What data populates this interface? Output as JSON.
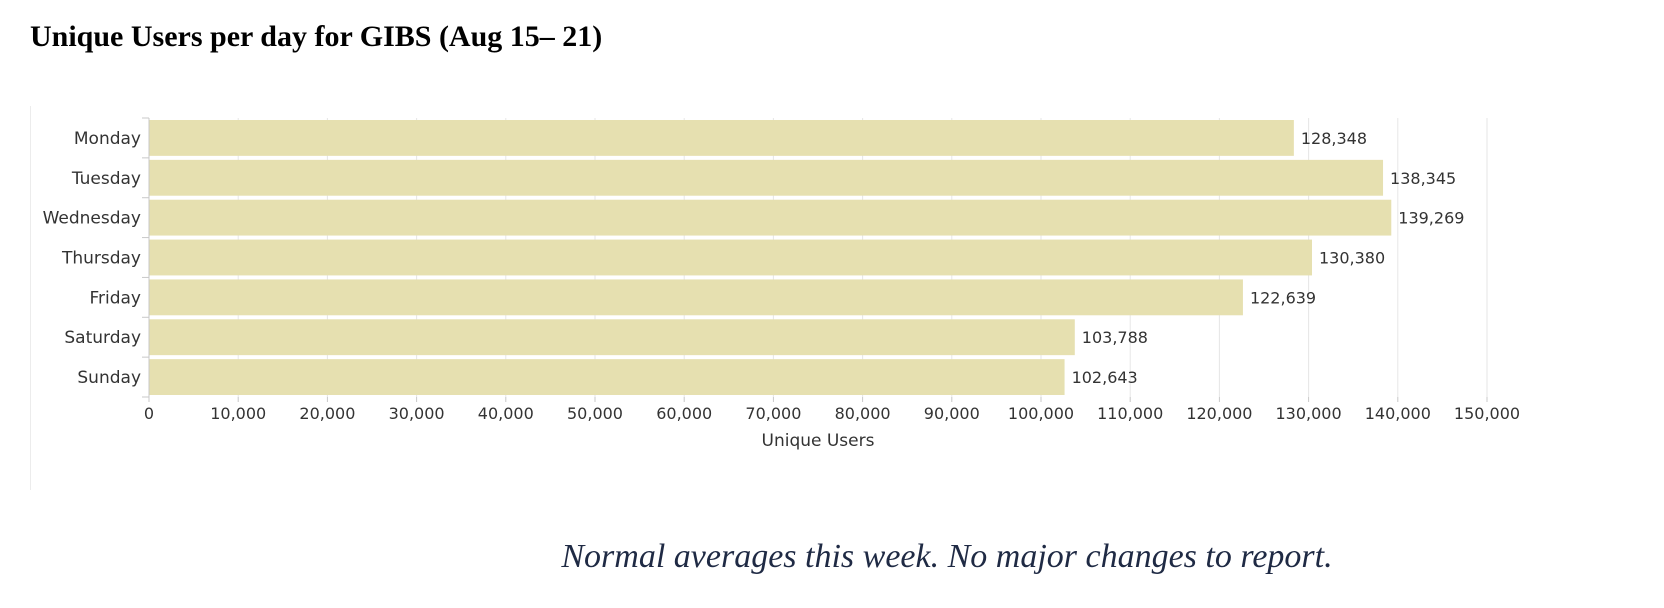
{
  "page": {
    "title": "Unique Users per day for GIBS (Aug 15– 21)",
    "caption": "Normal averages this week.  No major changes to report."
  },
  "chart_data": {
    "type": "bar",
    "orientation": "horizontal",
    "categories": [
      "Monday",
      "Tuesday",
      "Wednesday",
      "Thursday",
      "Friday",
      "Saturday",
      "Sunday"
    ],
    "values": [
      128348,
      138345,
      139269,
      130380,
      122639,
      103788,
      102643
    ],
    "data_labels": [
      "128,348",
      "138,345",
      "139,269",
      "130,380",
      "122,639",
      "103,788",
      "102,643"
    ],
    "xlabel": "Unique Users",
    "ylabel": "",
    "xlim": [
      0,
      150000
    ],
    "x_ticks": [
      0,
      10000,
      20000,
      30000,
      40000,
      50000,
      60000,
      70000,
      80000,
      90000,
      100000,
      110000,
      120000,
      130000,
      140000,
      150000
    ],
    "x_tick_labels": [
      "0",
      "10,000",
      "20,000",
      "30,000",
      "40,000",
      "50,000",
      "60,000",
      "70,000",
      "80,000",
      "90,000",
      "100,000",
      "110,000",
      "120,000",
      "130,000",
      "140,000",
      "150,000"
    ],
    "grid": true,
    "legend": "none",
    "colors": {
      "bar": "#e6e0b0",
      "grid": "#e6e6e6",
      "axis": "#c8c8c8",
      "text": "#333333"
    }
  }
}
